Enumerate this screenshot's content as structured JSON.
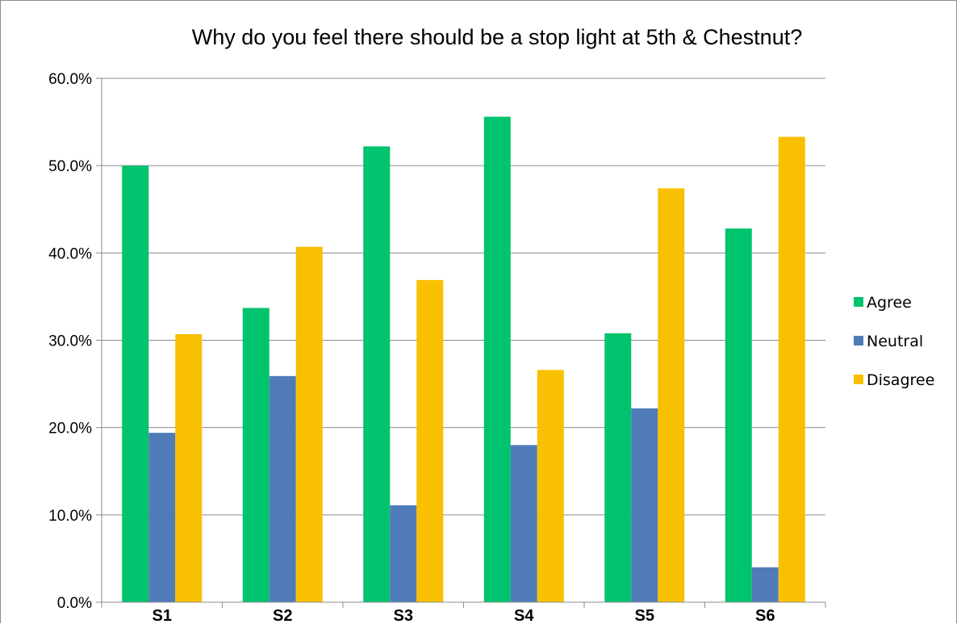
{
  "chart_data": {
    "type": "bar",
    "title": "Why do you feel there should be a stop light at 5th & Chestnut?",
    "xlabel": "",
    "ylabel": "",
    "categories": [
      "S1",
      "S2",
      "S3",
      "S4",
      "S5",
      "S6"
    ],
    "series": [
      {
        "name": "Agree",
        "color": "#00c36e",
        "values": [
          50.0,
          33.7,
          52.2,
          55.6,
          30.8,
          42.8
        ]
      },
      {
        "name": "Neutral",
        "color": "#4f7cb8",
        "values": [
          19.4,
          25.9,
          11.1,
          18.0,
          22.2,
          4.0
        ]
      },
      {
        "name": "Disagree",
        "color": "#f8c000",
        "values": [
          30.7,
          40.7,
          36.9,
          26.6,
          47.4,
          53.3
        ]
      }
    ],
    "ylim": [
      0,
      60
    ],
    "y_ticks": [
      0,
      10,
      20,
      30,
      40,
      50,
      60
    ],
    "y_tick_labels": [
      "0.0%",
      "10.0%",
      "20.0%",
      "30.0%",
      "40.0%",
      "50.0%",
      "60.0%"
    ],
    "grid": true,
    "legend_position": "right",
    "axis_color": "#8c8c8c"
  }
}
